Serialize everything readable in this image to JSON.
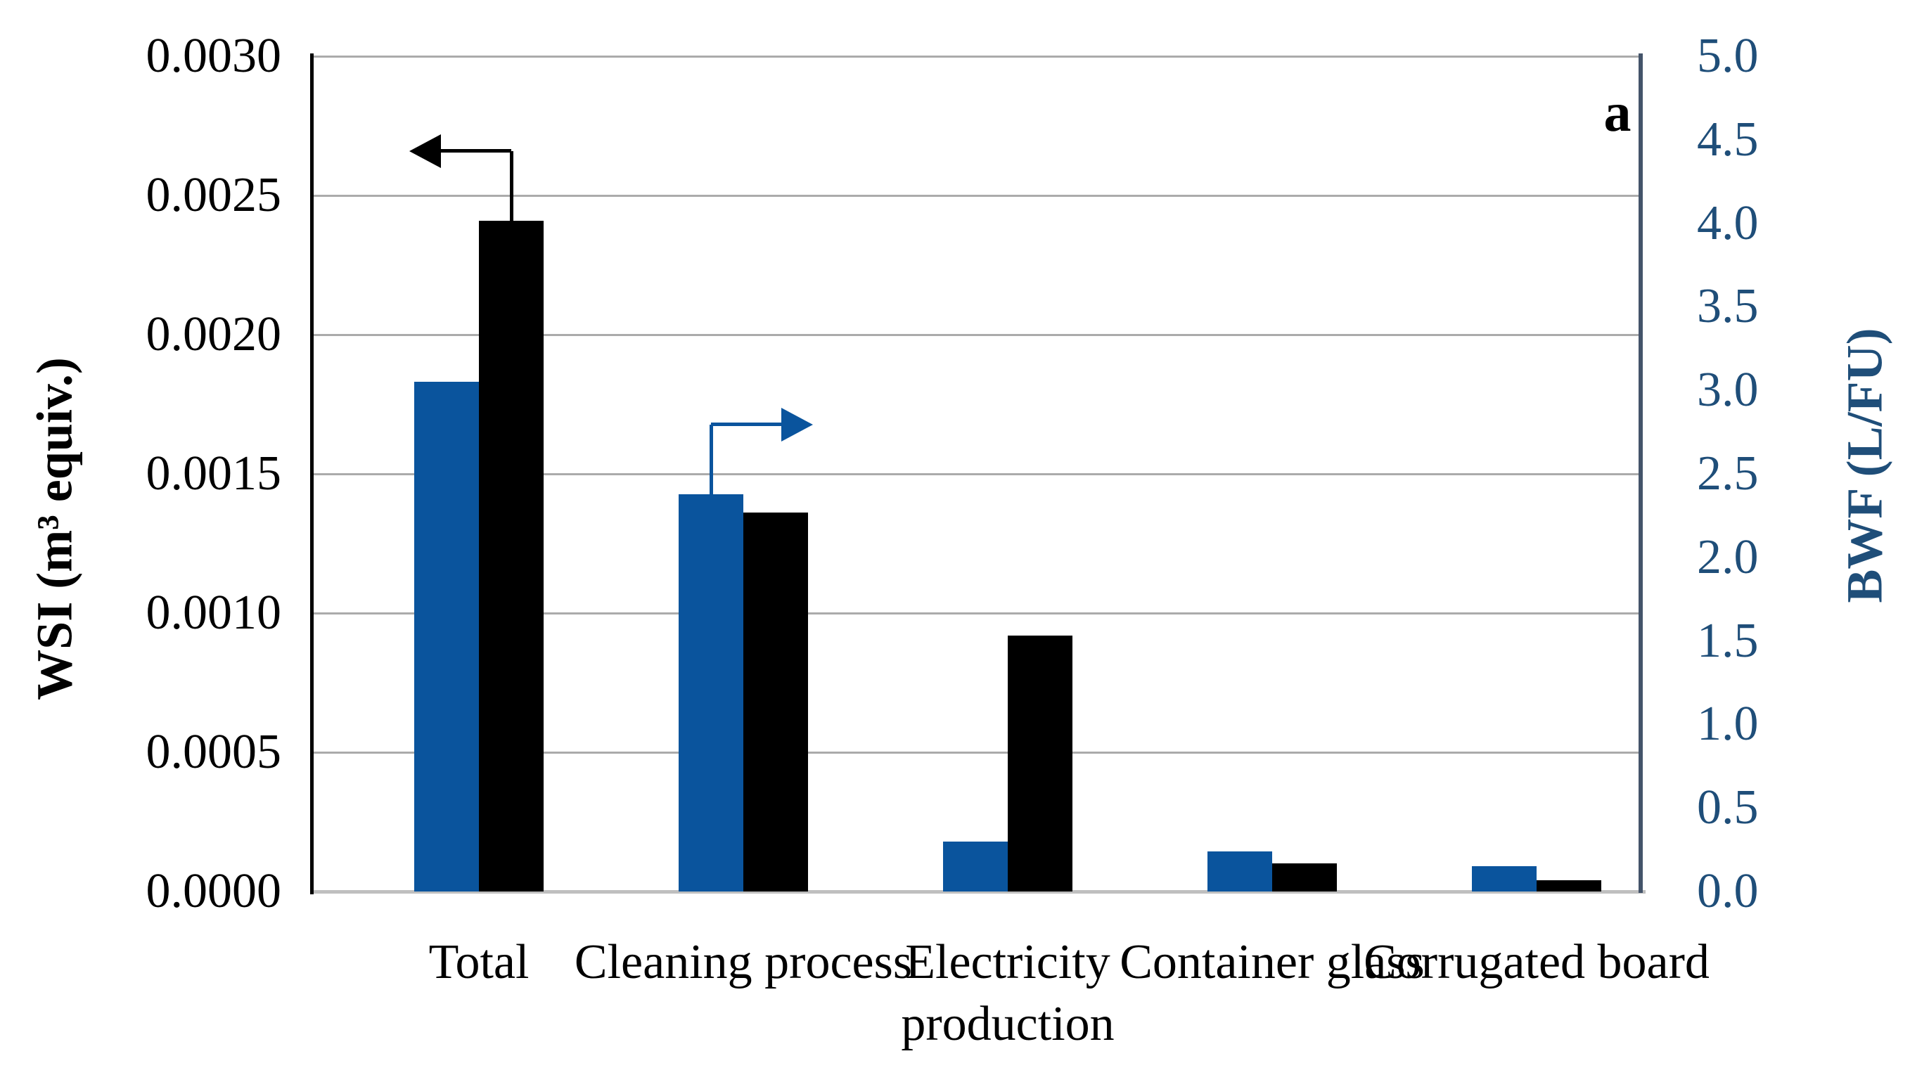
{
  "figure": {
    "panel_label": "a"
  },
  "chart_data": {
    "type": "bar",
    "title": "",
    "panel_label": "a",
    "categories": [
      "Total",
      "Cleaning process",
      "Electricity production",
      "Container glass",
      "Corrugated board"
    ],
    "series": [
      {
        "name": "BWF",
        "axis": "right",
        "color": "#0A549D",
        "values": [
          3.05,
          2.38,
          0.3,
          0.24,
          0.15
        ]
      },
      {
        "name": "WSI",
        "axis": "left",
        "color": "#000000",
        "values": [
          0.00241,
          0.00136,
          0.00092,
          0.0001,
          4e-05
        ]
      }
    ],
    "left_axis": {
      "title": "WSI (m³ equiv.)",
      "min": 0,
      "max": 0.003,
      "step": 0.0005,
      "tick_labels": [
        "0.0000",
        "0.0005",
        "0.0010",
        "0.0015",
        "0.0020",
        "0.0025",
        "0.0030"
      ],
      "text_color": "#000000"
    },
    "right_axis": {
      "title": "BWF (L/FU)",
      "min": 0,
      "max": 5,
      "step": 0.5,
      "tick_labels": [
        "0.0",
        "0.5",
        "1.0",
        "1.5",
        "2.0",
        "2.5",
        "3.0",
        "3.5",
        "4.0",
        "4.5",
        "5.0"
      ],
      "text_color": "#1F4E79"
    },
    "grid": true,
    "legend": "none",
    "annotations": {
      "arrows": [
        {
          "target_series": "WSI",
          "category_index": 0,
          "direction": "left",
          "color": "#000000"
        },
        {
          "target_series": "BWF",
          "category_index": 1,
          "direction": "right",
          "color": "#0A549D"
        }
      ]
    },
    "style": {
      "gridline_color": "#ababab",
      "left_axis_line_color": "#000000",
      "right_axis_line_color": "#44546A",
      "bottom_axis_line_color": "#bfbfbf"
    }
  }
}
